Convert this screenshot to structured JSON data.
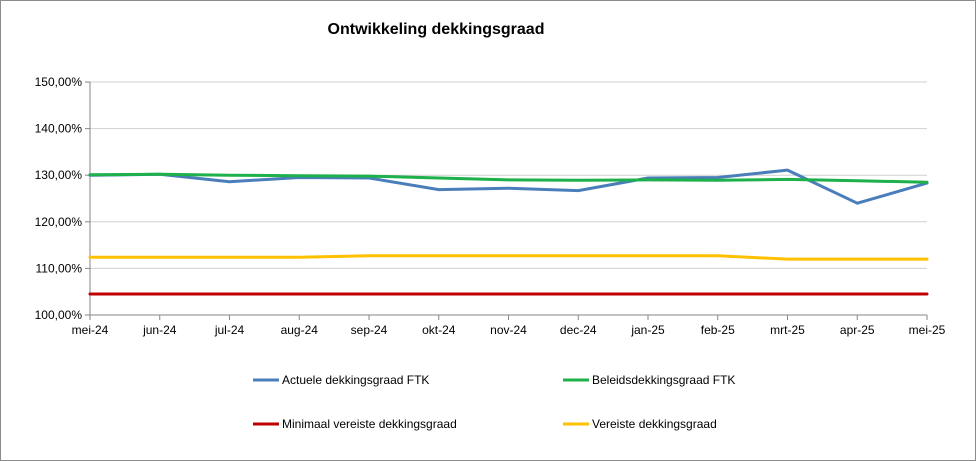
{
  "chart_data": {
    "type": "line",
    "title": "Ontwikkeling dekkingsgraad",
    "xlabel": "",
    "ylabel": "",
    "categories": [
      "mei-24",
      "jun-24",
      "jul-24",
      "aug-24",
      "sep-24",
      "okt-24",
      "nov-24",
      "dec-24",
      "jan-25",
      "feb-25",
      "mrt-25",
      "apr-25",
      "mei-25"
    ],
    "y_ticks": [
      "100,00%",
      "110,00%",
      "120,00%",
      "130,00%",
      "140,00%",
      "150,00%"
    ],
    "ylim": [
      100,
      150
    ],
    "grid": true,
    "legend_position": "bottom",
    "series": [
      {
        "name": "Actuele dekkingsgraad FTK",
        "color": "#4a7ebb",
        "values": [
          130.0,
          130.2,
          128.6,
          129.5,
          129.4,
          126.9,
          127.2,
          126.7,
          129.4,
          129.5,
          131.1,
          124.0,
          128.3
        ]
      },
      {
        "name": "Beleidsdekkingsgraad FTK",
        "color": "#1db04b",
        "values": [
          130.1,
          130.2,
          130.0,
          129.9,
          129.8,
          129.4,
          129.0,
          128.9,
          129.0,
          128.9,
          129.1,
          128.8,
          128.5
        ]
      },
      {
        "name": "Minimaal vereiste dekkingsgraad",
        "color": "#c00000",
        "values": [
          104.5,
          104.5,
          104.5,
          104.5,
          104.5,
          104.5,
          104.5,
          104.5,
          104.5,
          104.5,
          104.5,
          104.5,
          104.5
        ]
      },
      {
        "name": "Vereiste dekkingsgraad",
        "color": "#ffc000",
        "values": [
          112.4,
          112.4,
          112.4,
          112.4,
          112.7,
          112.7,
          112.7,
          112.7,
          112.7,
          112.7,
          112.0,
          112.0,
          112.0
        ]
      }
    ]
  }
}
